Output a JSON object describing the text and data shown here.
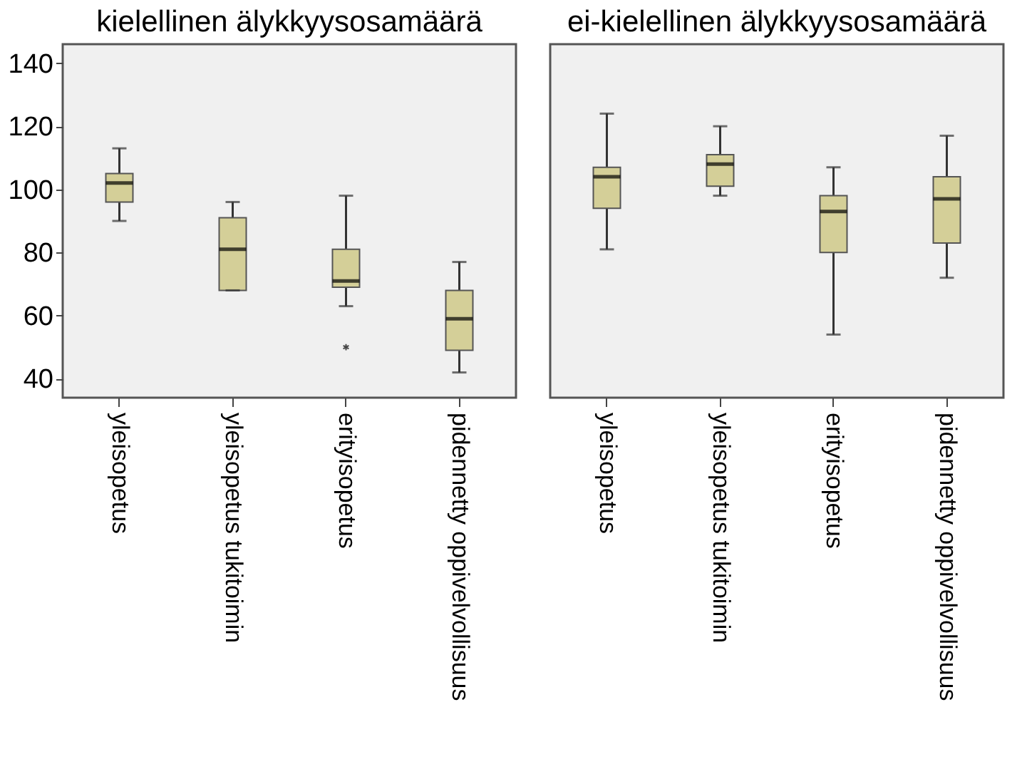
{
  "chart_data": [
    {
      "type": "box",
      "title": "kielellinen älykkyysosamäärä",
      "categories": [
        "yleisopetus",
        "yleisopetus tukitoimin",
        "erityisopetus",
        "pidennetty oppivelvollisuus"
      ],
      "ylim": [
        34,
        146
      ],
      "yticks": [
        40,
        60,
        80,
        100,
        120,
        140
      ],
      "series": [
        {
          "color": "#d4cf98",
          "boxes": [
            {
              "low": 90,
              "q1": 96,
              "median": 102,
              "q3": 105,
              "high": 113
            },
            {
              "low": 68,
              "q1": 68,
              "median": 81,
              "q3": 91,
              "high": 96
            },
            {
              "low": 63,
              "q1": 69,
              "median": 71,
              "q3": 81,
              "high": 98,
              "outliers": [
                50
              ]
            },
            {
              "low": 42,
              "q1": 49,
              "median": 59,
              "q3": 68,
              "high": 77
            }
          ]
        }
      ]
    },
    {
      "type": "box",
      "title": "ei-kielellinen älykkyysosamäärä",
      "categories": [
        "yleisopetus",
        "yleisopetus tukitoimin",
        "erityisopetus",
        "pidennetty oppivelvollisuus"
      ],
      "ylim": [
        34,
        146
      ],
      "yticks": [
        40,
        60,
        80,
        100,
        120,
        140
      ],
      "tick_labels": "x",
      "series": [
        {
          "color": "#d4cf98",
          "boxes": [
            {
              "low": 81,
              "q1": 94,
              "median": 104,
              "q3": 107,
              "high": 124
            },
            {
              "low": 98,
              "q1": 101,
              "median": 108,
              "q3": 111,
              "high": 120
            },
            {
              "low": 54,
              "q1": 80,
              "median": 93,
              "q3": 98,
              "high": 107
            },
            {
              "low": 72,
              "q1": 83,
              "median": 97,
              "q3": 104,
              "high": 117
            }
          ]
        }
      ]
    }
  ]
}
